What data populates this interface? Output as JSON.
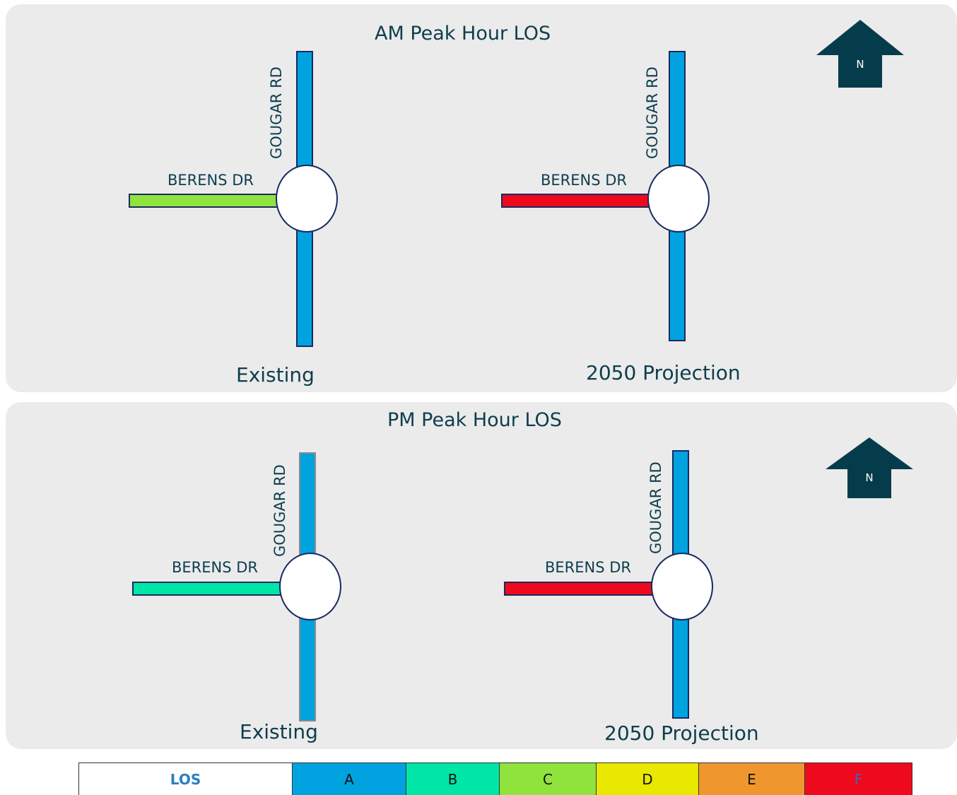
{
  "colors": {
    "los_a": "#00a3e0",
    "los_b": "#00e6a6",
    "los_c": "#8fe33c",
    "los_d": "#e8e800",
    "los_e": "#f0962e",
    "los_f": "#ee0a1c",
    "north_arrow": "#053c4b"
  },
  "am": {
    "title": "AM Peak Hour LOS",
    "north_label": "N",
    "existing": {
      "caption": "Existing",
      "gougar_label": "GOUGAR RD",
      "berens_label": "BERENS DR",
      "gougar_los": "A",
      "berens_los": "C"
    },
    "projection": {
      "caption": "2050 Projection",
      "gougar_label": "GOUGAR RD",
      "berens_label": "BERENS DR",
      "gougar_los": "A",
      "berens_los": "F"
    }
  },
  "pm": {
    "title": "PM Peak Hour LOS",
    "north_label": "N",
    "existing": {
      "caption": "Existing",
      "gougar_label": "GOUGAR RD",
      "berens_label": "BERENS DR",
      "gougar_los": "A",
      "berens_los": "B"
    },
    "projection": {
      "caption": "2050 Projection",
      "gougar_label": "GOUGAR RD",
      "berens_label": "BERENS DR",
      "gougar_los": "A",
      "berens_los": "F"
    }
  },
  "legend": {
    "header": "LOS",
    "levels": [
      "A",
      "B",
      "C",
      "D",
      "E",
      "F"
    ]
  }
}
